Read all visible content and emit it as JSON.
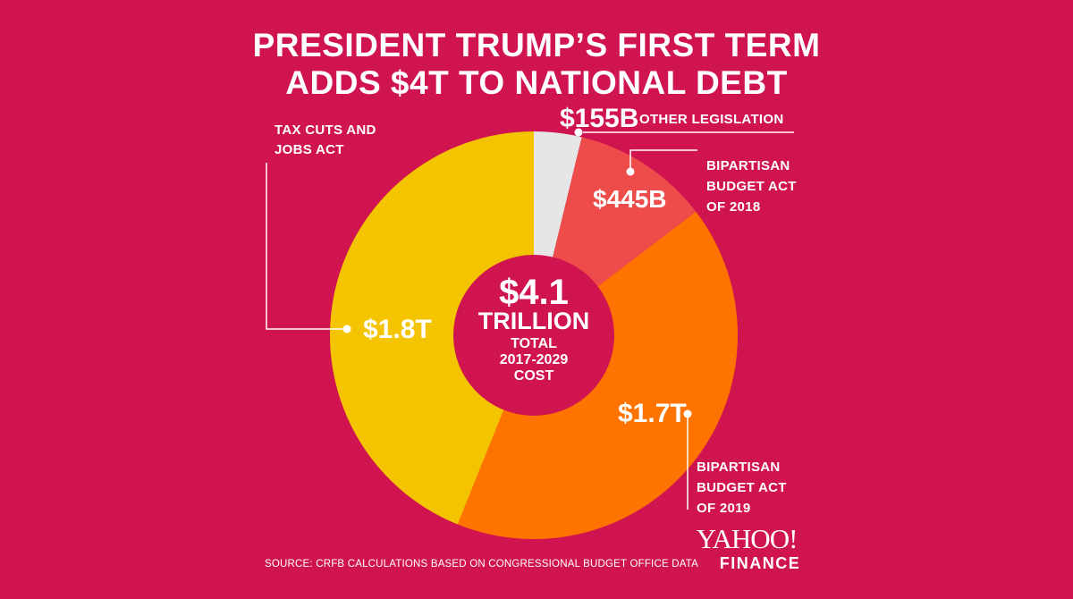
{
  "header": {
    "title_line1": "PRESIDENT TRUMP’S FIRST TERM",
    "title_line2": "ADDS $4T TO NATIONAL DEBT"
  },
  "colors": {
    "background": "#d01450",
    "tax_cuts": "#f4c400",
    "bba_2019": "#ff7300",
    "bba_2018": "#ee4b4b",
    "other": "#e6e6e6"
  },
  "chart_data": {
    "type": "pie",
    "title": "PRESIDENT TRUMP’S FIRST TERM ADDS $4T TO NATIONAL DEBT",
    "unit": "billions USD",
    "slices": [
      {
        "category": "OTHER LEGISLATION",
        "value": 155,
        "value_label": "$155B",
        "color": "#e6e6e6"
      },
      {
        "category": "BIPARTISAN BUDGET ACT OF 2018",
        "value": 445,
        "value_label": "$445B",
        "color": "#ee4b4b"
      },
      {
        "category": "BIPARTISAN BUDGET ACT OF 2019",
        "value": 1700,
        "value_label": "$1.7T",
        "color": "#ff7300"
      },
      {
        "category": "TAX CUTS AND JOBS ACT",
        "value": 1800,
        "value_label": "$1.8T",
        "color": "#f4c400"
      }
    ],
    "center": {
      "value": "$4.1",
      "unit": "TRILLION",
      "line1": "TOTAL",
      "line2": "2017-2029",
      "line3": "COST"
    }
  },
  "labels": {
    "other": {
      "value": "$155B",
      "name": "OTHER LEGISLATION"
    },
    "bba2018": {
      "value": "$445B",
      "line1": "BIPARTISAN",
      "line2": "BUDGET ACT",
      "line3": "OF 2018"
    },
    "bba2019": {
      "value": "$1.7T",
      "line1": "BIPARTISAN",
      "line2": "BUDGET ACT",
      "line3": "OF 2019"
    },
    "tcja": {
      "value": "$1.8T",
      "line1": "TAX CUTS AND",
      "line2": "JOBS ACT"
    }
  },
  "footer": {
    "source": "SOURCE:  CRFB CALCULATIONS BASED ON CONGRESSIONAL BUDGET OFFICE DATA",
    "logo_top": "YAHOO!",
    "logo_bottom": "FINANCE"
  }
}
